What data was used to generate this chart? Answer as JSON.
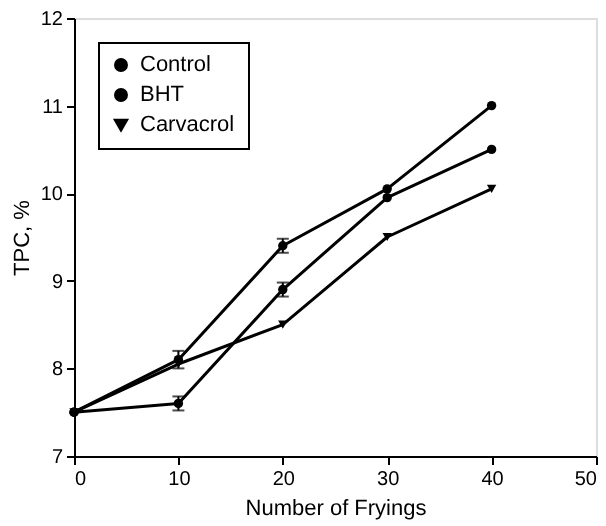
{
  "chart_data": {
    "type": "line",
    "xlabel": "Number of Fryings",
    "ylabel": "TPC, %",
    "x": [
      0,
      10,
      20,
      30,
      40
    ],
    "xlim": [
      0,
      50
    ],
    "xticks": [
      0,
      10,
      20,
      30,
      40,
      50
    ],
    "ylim": [
      7,
      12
    ],
    "yticks": [
      7,
      8,
      9,
      10,
      11,
      12
    ],
    "grid": false,
    "legend": "top left",
    "line_style": "solid",
    "series": [
      {
        "name": "Control",
        "color": "#000000",
        "marker": "circle",
        "values": [
          7.5,
          8.1,
          9.4,
          10.05,
          11.0
        ],
        "errors": [
          null,
          0.1,
          0.08,
          null,
          null
        ]
      },
      {
        "name": "BHT",
        "color": "#000000",
        "marker": "circle",
        "values": [
          7.5,
          7.6,
          8.9,
          9.95,
          10.5
        ],
        "errors": [
          null,
          0.08,
          0.08,
          null,
          null
        ]
      },
      {
        "name": "Carvacrol",
        "color": "#000000",
        "marker": "triangle",
        "values": [
          7.5,
          8.05,
          8.5,
          9.5,
          10.05
        ],
        "errors": [
          null,
          null,
          null,
          null,
          null
        ]
      }
    ]
  }
}
